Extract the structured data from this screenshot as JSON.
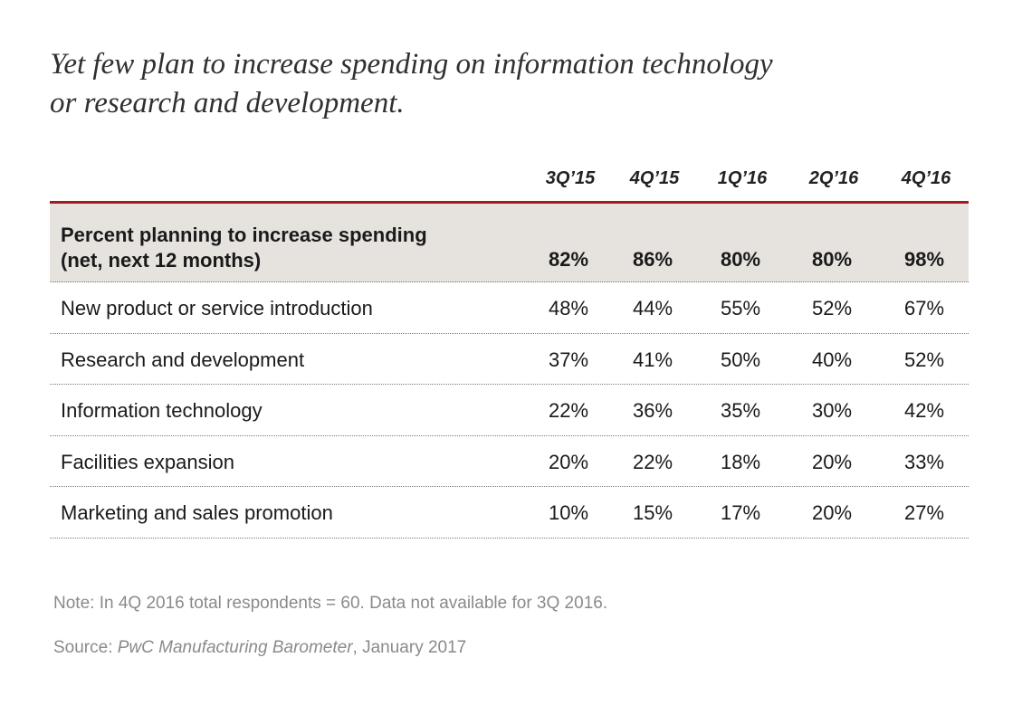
{
  "title": {
    "line1": "Yet few plan to increase spending on information technology",
    "line2": "or research and development."
  },
  "note": "Note: In 4Q 2016 total respondents = 60. Data not available for 3Q 2016.",
  "source": {
    "prefix": "Source: ",
    "publication": "PwC Manufacturing Barometer",
    "suffix": ", January 2017"
  },
  "colors": {
    "header_rule": "#a31a23",
    "lead_row_bg": "#e6e3df",
    "footnote_text": "#8a8a8a"
  },
  "chart_data": {
    "type": "table",
    "title": "Yet few plan to increase spending on information technology or research and development.",
    "columns": [
      "3Q’15",
      "4Q’15",
      "1Q’16",
      "2Q’16",
      "4Q’16"
    ],
    "rows": [
      {
        "label_line1": "Percent planning to increase spending",
        "label_line2": "(net, next 12 months)",
        "values": [
          "82%",
          "86%",
          "80%",
          "80%",
          "98%"
        ]
      },
      {
        "label": "New product or service introduction",
        "values": [
          "48%",
          "44%",
          "55%",
          "52%",
          "67%"
        ]
      },
      {
        "label": "Research and development",
        "values": [
          "37%",
          "41%",
          "50%",
          "40%",
          "52%"
        ]
      },
      {
        "label": "Information technology",
        "values": [
          "22%",
          "36%",
          "35%",
          "30%",
          "42%"
        ]
      },
      {
        "label": "Facilities expansion",
        "values": [
          "20%",
          "22%",
          "18%",
          "20%",
          "33%"
        ]
      },
      {
        "label": "Marketing and sales promotion",
        "values": [
          "10%",
          "15%",
          "17%",
          "20%",
          "27%"
        ]
      }
    ]
  }
}
